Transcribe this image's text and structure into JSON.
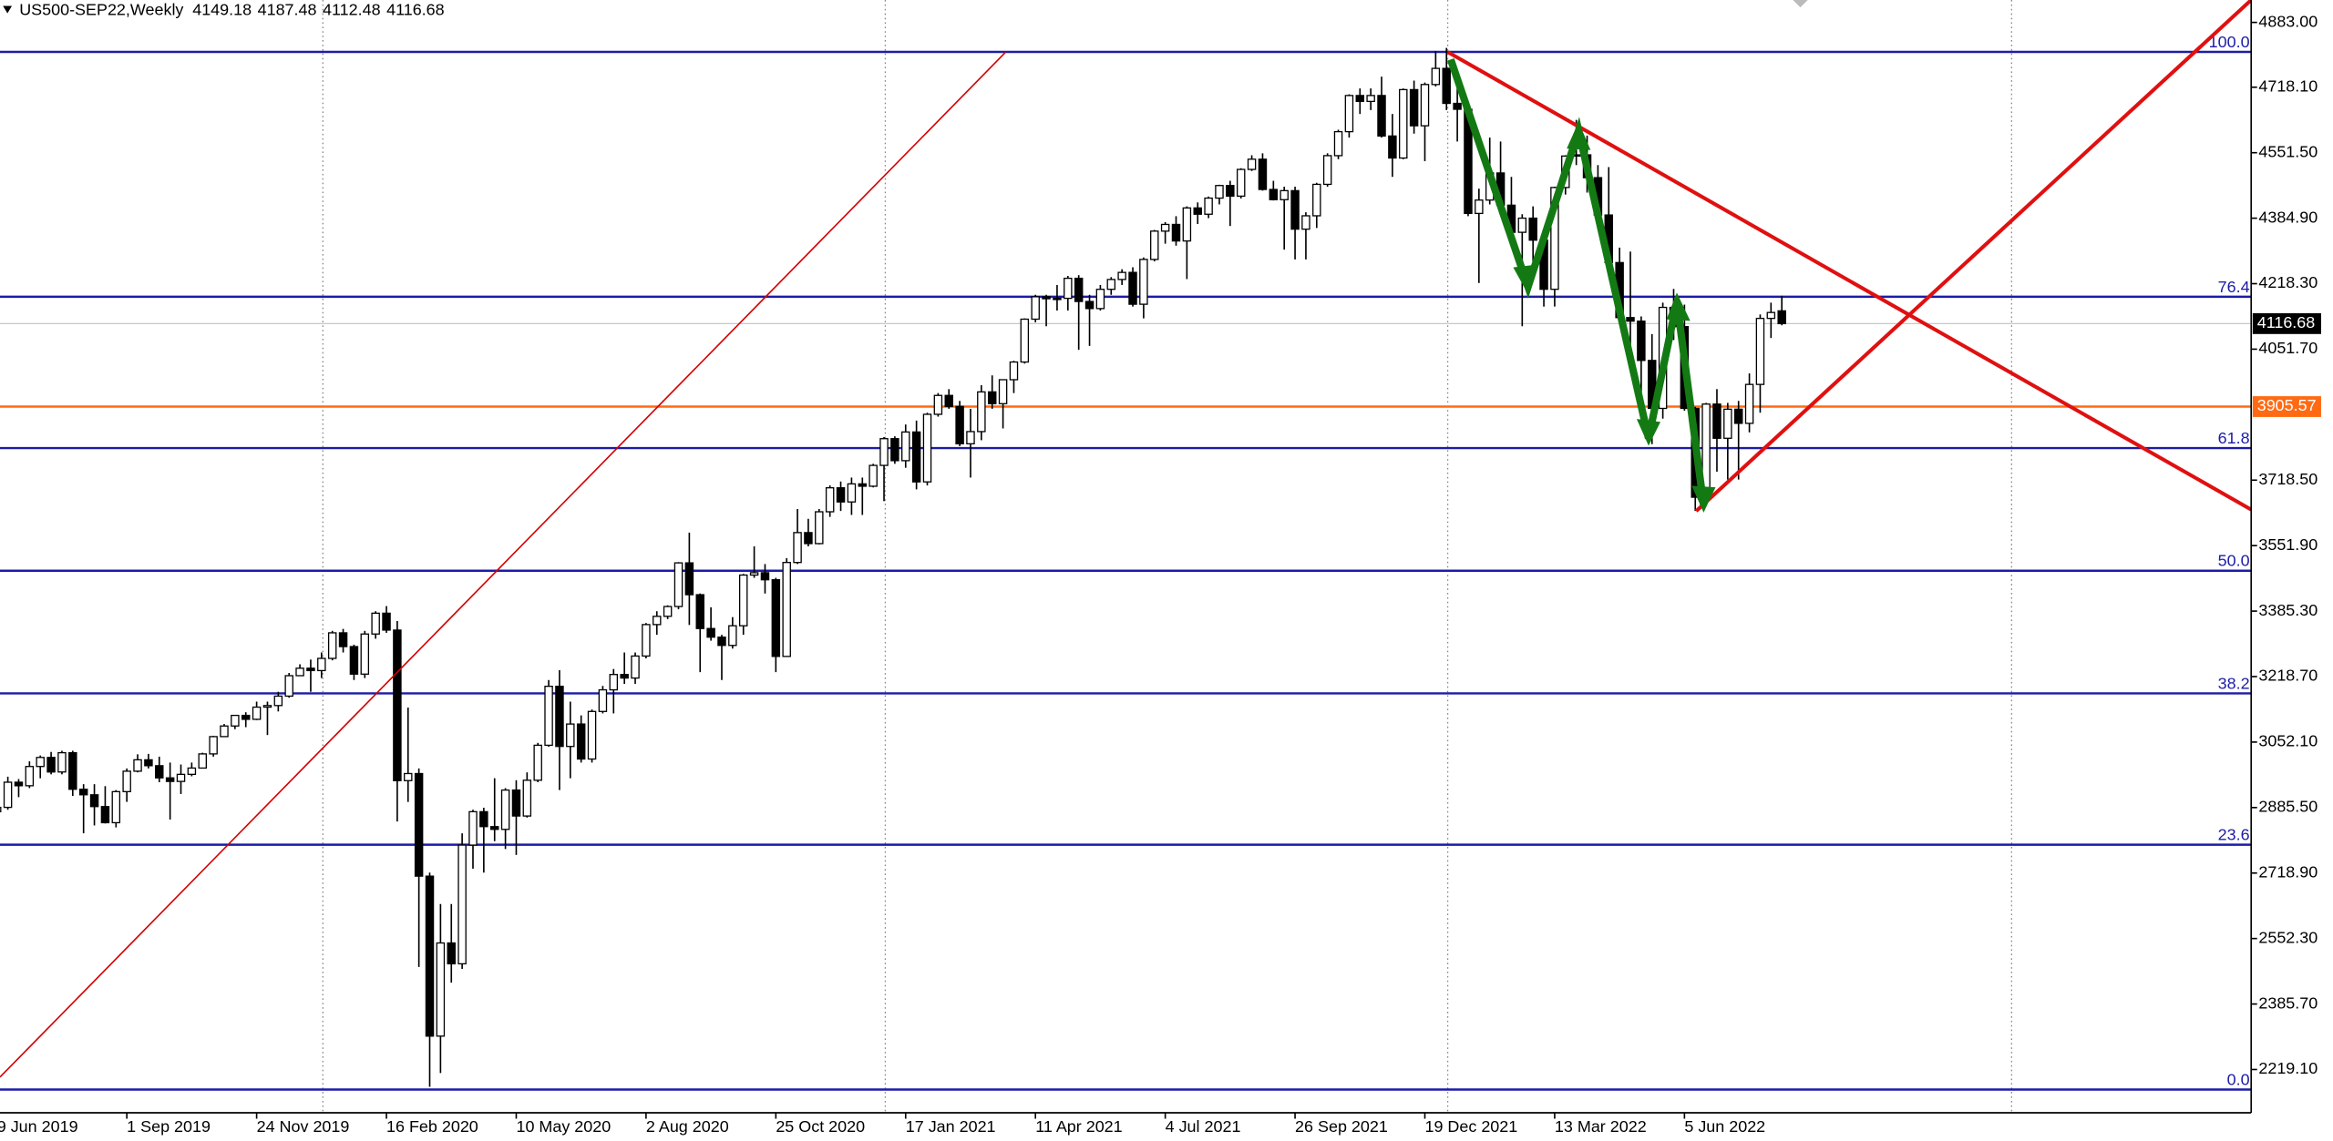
{
  "chart_data": {
    "type": "candlestick",
    "title": "US500-SEP22,Weekly",
    "ylim": [
      2109,
      4940
    ],
    "yticks": [
      {
        "value": 4883,
        "label": "4883.00"
      },
      {
        "value": 4718.1,
        "label": "4718.10"
      },
      {
        "value": 4551.5,
        "label": "4551.50"
      },
      {
        "value": 4384.9,
        "label": "4384.90"
      },
      {
        "value": 4218.3,
        "label": "4218.30"
      },
      {
        "value": 4051.7,
        "label": "4051.70"
      },
      {
        "value": 3718.5,
        "label": "3718.50"
      },
      {
        "value": 3551.9,
        "label": "3551.90"
      },
      {
        "value": 3385.3,
        "label": "3385.30"
      },
      {
        "value": 3218.7,
        "label": "3218.70"
      },
      {
        "value": 3052.1,
        "label": "3052.10"
      },
      {
        "value": 2885.5,
        "label": "2885.50"
      },
      {
        "value": 2718.9,
        "label": "2718.90"
      },
      {
        "value": 2552.3,
        "label": "2552.30"
      },
      {
        "value": 2385.7,
        "label": "2385.70"
      },
      {
        "value": 2219.1,
        "label": "2219.10"
      }
    ],
    "fib_levels": [
      {
        "label": "100.0",
        "price": 4808
      },
      {
        "label": "76.4",
        "price": 4185
      },
      {
        "label": "61.8",
        "price": 3800
      },
      {
        "label": "50.0",
        "price": 3488
      },
      {
        "label": "38.2",
        "price": 3176
      },
      {
        "label": "23.6",
        "price": 2791
      },
      {
        "label": "0.0",
        "price": 2168
      }
    ],
    "fib_color": "#1c1ca8",
    "level_line": {
      "value": 3905.57,
      "color": "#ff6a13"
    },
    "bull_color": "#ffffff",
    "bear_color": "#000000",
    "categories": [
      "9 Jun 2019",
      null,
      null,
      null,
      null,
      null,
      null,
      null,
      null,
      null,
      null,
      null,
      "1 Sep 2019",
      null,
      null,
      null,
      null,
      null,
      null,
      null,
      null,
      null,
      null,
      null,
      "24 Nov 2019",
      null,
      null,
      null,
      null,
      null,
      null,
      null,
      null,
      null,
      null,
      null,
      "16 Feb 2020",
      null,
      null,
      null,
      null,
      null,
      null,
      null,
      null,
      null,
      null,
      null,
      "10 May 2020",
      null,
      null,
      null,
      null,
      null,
      null,
      null,
      null,
      null,
      null,
      null,
      "2 Aug 2020",
      null,
      null,
      null,
      null,
      null,
      null,
      null,
      null,
      null,
      null,
      null,
      "25 Oct 2020",
      null,
      null,
      null,
      null,
      null,
      null,
      null,
      null,
      null,
      null,
      null,
      "17 Jan 2021",
      null,
      null,
      null,
      null,
      null,
      null,
      null,
      null,
      null,
      null,
      null,
      "11 Apr 2021",
      null,
      null,
      null,
      null,
      null,
      null,
      null,
      null,
      null,
      null,
      null,
      "4 Jul 2021",
      null,
      null,
      null,
      null,
      null,
      null,
      null,
      null,
      null,
      null,
      null,
      "26 Sep 2021",
      null,
      null,
      null,
      null,
      null,
      null,
      null,
      null,
      null,
      null,
      null,
      "19 Dec 2021",
      null,
      null,
      null,
      null,
      null,
      null,
      null,
      null,
      null,
      null,
      null,
      "13 Mar 2022",
      null,
      null,
      null,
      null,
      null,
      null,
      null,
      null,
      null,
      null,
      null,
      "5 Jun 2022",
      null,
      null,
      null,
      null,
      null,
      null,
      null,
      null,
      null
    ],
    "candles": [
      [
        2875,
        2905,
        2840,
        2886
      ],
      [
        2886,
        2964,
        2880,
        2950
      ],
      [
        2950,
        2958,
        2912,
        2941
      ],
      [
        2941,
        3003,
        2935,
        2990
      ],
      [
        2990,
        3018,
        2960,
        3013
      ],
      [
        3013,
        3027,
        2970,
        2976
      ],
      [
        2976,
        3030,
        2970,
        3025
      ],
      [
        3025,
        3030,
        2915,
        2932
      ],
      [
        2932,
        2945,
        2820,
        2918
      ],
      [
        2918,
        2945,
        2840,
        2888
      ],
      [
        2888,
        2940,
        2845,
        2847
      ],
      [
        2847,
        2930,
        2835,
        2926
      ],
      [
        2926,
        2985,
        2900,
        2978
      ],
      [
        2978,
        3021,
        2975,
        3007
      ],
      [
        3007,
        3022,
        2985,
        2992
      ],
      [
        2992,
        3015,
        2950,
        2961
      ],
      [
        2961,
        3000,
        2855,
        2952
      ],
      [
        2952,
        2995,
        2920,
        2970
      ],
      [
        2970,
        3000,
        2965,
        2986
      ],
      [
        2986,
        3025,
        2985,
        3022
      ],
      [
        3022,
        3068,
        3015,
        3066
      ],
      [
        3066,
        3098,
        3065,
        3093
      ],
      [
        3093,
        3121,
        3085,
        3120
      ],
      [
        3120,
        3128,
        3090,
        3110
      ],
      [
        3110,
        3155,
        3108,
        3141
      ],
      [
        3141,
        3155,
        3070,
        3145
      ],
      [
        3145,
        3180,
        3130,
        3169
      ],
      [
        3169,
        3228,
        3165,
        3221
      ],
      [
        3221,
        3250,
        3220,
        3240
      ],
      [
        3240,
        3262,
        3180,
        3234
      ],
      [
        3234,
        3280,
        3215,
        3265
      ],
      [
        3265,
        3335,
        3260,
        3330
      ],
      [
        3330,
        3340,
        3280,
        3295
      ],
      [
        3295,
        3300,
        3210,
        3225
      ],
      [
        3225,
        3335,
        3215,
        3327
      ],
      [
        3327,
        3385,
        3315,
        3380
      ],
      [
        3380,
        3398,
        3330,
        3337
      ],
      [
        3337,
        3360,
        2850,
        2954
      ],
      [
        2954,
        3140,
        2900,
        2972
      ],
      [
        2972,
        2985,
        2480,
        2711
      ],
      [
        2711,
        2720,
        2175,
        2304
      ],
      [
        2304,
        2640,
        2210,
        2541
      ],
      [
        2541,
        2640,
        2440,
        2488
      ],
      [
        2488,
        2820,
        2475,
        2790
      ],
      [
        2790,
        2880,
        2730,
        2875
      ],
      [
        2875,
        2885,
        2720,
        2837
      ],
      [
        2837,
        2960,
        2800,
        2830
      ],
      [
        2830,
        2935,
        2780,
        2930
      ],
      [
        2930,
        2955,
        2765,
        2864
      ],
      [
        2864,
        2975,
        2860,
        2955
      ],
      [
        2955,
        3050,
        2950,
        3044
      ],
      [
        3044,
        3210,
        3040,
        3194
      ],
      [
        3194,
        3235,
        2930,
        3041
      ],
      [
        3041,
        3155,
        2960,
        3098
      ],
      [
        3098,
        3120,
        3000,
        3009
      ],
      [
        3009,
        3135,
        3000,
        3130
      ],
      [
        3130,
        3195,
        3125,
        3185
      ],
      [
        3185,
        3238,
        3125,
        3224
      ],
      [
        3224,
        3280,
        3200,
        3215
      ],
      [
        3215,
        3280,
        3200,
        3271
      ],
      [
        3271,
        3355,
        3265,
        3351
      ],
      [
        3351,
        3385,
        3325,
        3372
      ],
      [
        3372,
        3400,
        3365,
        3397
      ],
      [
        3397,
        3510,
        3390,
        3508
      ],
      [
        3508,
        3585,
        3350,
        3427
      ],
      [
        3427,
        3430,
        3230,
        3341
      ],
      [
        3341,
        3395,
        3310,
        3319
      ],
      [
        3319,
        3325,
        3210,
        3298
      ],
      [
        3298,
        3370,
        3290,
        3348
      ],
      [
        3348,
        3480,
        3325,
        3477
      ],
      [
        3477,
        3550,
        3470,
        3483
      ],
      [
        3483,
        3505,
        3430,
        3465
      ],
      [
        3465,
        3470,
        3230,
        3270
      ],
      [
        3270,
        3520,
        3270,
        3509
      ],
      [
        3509,
        3645,
        3505,
        3585
      ],
      [
        3585,
        3620,
        3550,
        3557
      ],
      [
        3557,
        3645,
        3555,
        3638
      ],
      [
        3638,
        3705,
        3625,
        3699
      ],
      [
        3699,
        3715,
        3640,
        3663
      ],
      [
        3663,
        3725,
        3630,
        3709
      ],
      [
        3709,
        3725,
        3630,
        3703
      ],
      [
        3703,
        3760,
        3700,
        3756
      ],
      [
        3756,
        3828,
        3665,
        3824
      ],
      [
        3824,
        3830,
        3760,
        3768
      ],
      [
        3768,
        3860,
        3750,
        3841
      ],
      [
        3841,
        3870,
        3695,
        3714
      ],
      [
        3714,
        3890,
        3705,
        3886
      ],
      [
        3886,
        3940,
        3880,
        3934
      ],
      [
        3934,
        3950,
        3900,
        3906
      ],
      [
        3906,
        3920,
        3805,
        3811
      ],
      [
        3811,
        3900,
        3725,
        3842
      ],
      [
        3842,
        3960,
        3820,
        3943
      ],
      [
        3943,
        3985,
        3900,
        3913
      ],
      [
        3913,
        3975,
        3850,
        3974
      ],
      [
        3974,
        4022,
        3940,
        4019
      ],
      [
        4019,
        4130,
        4015,
        4128
      ],
      [
        4128,
        4190,
        4120,
        4185
      ],
      [
        4185,
        4190,
        4110,
        4180
      ],
      [
        4180,
        4215,
        4150,
        4181
      ],
      [
        4181,
        4238,
        4150,
        4232
      ],
      [
        4232,
        4240,
        4050,
        4173
      ],
      [
        4173,
        4190,
        4060,
        4155
      ],
      [
        4155,
        4215,
        4150,
        4204
      ],
      [
        4204,
        4235,
        4190,
        4229
      ],
      [
        4229,
        4255,
        4215,
        4247
      ],
      [
        4247,
        4260,
        4160,
        4166
      ],
      [
        4166,
        4285,
        4130,
        4280
      ],
      [
        4280,
        4355,
        4275,
        4352
      ],
      [
        4352,
        4375,
        4320,
        4369
      ],
      [
        4369,
        4390,
        4315,
        4327
      ],
      [
        4327,
        4415,
        4230,
        4411
      ],
      [
        4411,
        4425,
        4370,
        4395
      ],
      [
        4395,
        4440,
        4385,
        4436
      ],
      [
        4436,
        4470,
        4420,
        4468
      ],
      [
        4468,
        4480,
        4365,
        4441
      ],
      [
        4441,
        4512,
        4435,
        4509
      ],
      [
        4509,
        4545,
        4505,
        4535
      ],
      [
        4535,
        4550,
        4455,
        4458
      ],
      [
        4458,
        4480,
        4430,
        4432
      ],
      [
        4432,
        4465,
        4305,
        4455
      ],
      [
        4455,
        4465,
        4280,
        4357
      ],
      [
        4357,
        4400,
        4280,
        4391
      ],
      [
        4391,
        4475,
        4360,
        4471
      ],
      [
        4471,
        4550,
        4465,
        4544
      ],
      [
        4544,
        4610,
        4535,
        4605
      ],
      [
        4605,
        4700,
        4590,
        4697
      ],
      [
        4697,
        4715,
        4650,
        4682
      ],
      [
        4682,
        4715,
        4660,
        4697
      ],
      [
        4697,
        4745,
        4590,
        4594
      ],
      [
        4594,
        4650,
        4490,
        4538
      ],
      [
        4538,
        4715,
        4535,
        4712
      ],
      [
        4712,
        4735,
        4600,
        4620
      ],
      [
        4620,
        4730,
        4530,
        4725
      ],
      [
        4725,
        4810,
        4720,
        4766
      ],
      [
        4766,
        4818,
        4660,
        4677
      ],
      [
        4677,
        4750,
        4580,
        4662
      ],
      [
        4662,
        4670,
        4390,
        4397
      ],
      [
        4397,
        4460,
        4220,
        4431
      ],
      [
        4431,
        4590,
        4420,
        4500
      ],
      [
        4500,
        4580,
        4400,
        4418
      ],
      [
        4418,
        4490,
        4320,
        4349
      ],
      [
        4349,
        4395,
        4110,
        4385
      ],
      [
        4385,
        4415,
        4275,
        4329
      ],
      [
        4329,
        4345,
        4160,
        4204
      ],
      [
        4204,
        4465,
        4160,
        4463
      ],
      [
        4463,
        4545,
        4445,
        4543
      ],
      [
        4543,
        4635,
        4520,
        4546
      ],
      [
        4546,
        4595,
        4450,
        4488
      ],
      [
        4488,
        4520,
        4380,
        4393
      ],
      [
        4393,
        4515,
        4265,
        4272
      ],
      [
        4272,
        4310,
        4130,
        4132
      ],
      [
        4132,
        4300,
        4060,
        4123
      ],
      [
        4123,
        4135,
        3860,
        4023
      ],
      [
        4023,
        4090,
        3810,
        3901
      ],
      [
        3901,
        4170,
        3875,
        4158
      ],
      [
        4158,
        4205,
        4075,
        4109
      ],
      [
        4109,
        4165,
        3895,
        3901
      ],
      [
        3901,
        3905,
        3640,
        3675
      ],
      [
        3675,
        3915,
        3670,
        3912
      ],
      [
        3912,
        3950,
        3740,
        3825
      ],
      [
        3825,
        3915,
        3720,
        3899
      ],
      [
        3899,
        3920,
        3720,
        3863
      ],
      [
        3863,
        3990,
        3840,
        3962
      ],
      [
        3962,
        4140,
        3890,
        4130
      ],
      [
        4130,
        4170,
        4080,
        4145
      ],
      [
        4149.18,
        4187.48,
        4112.48,
        4116.68
      ]
    ]
  }
}
